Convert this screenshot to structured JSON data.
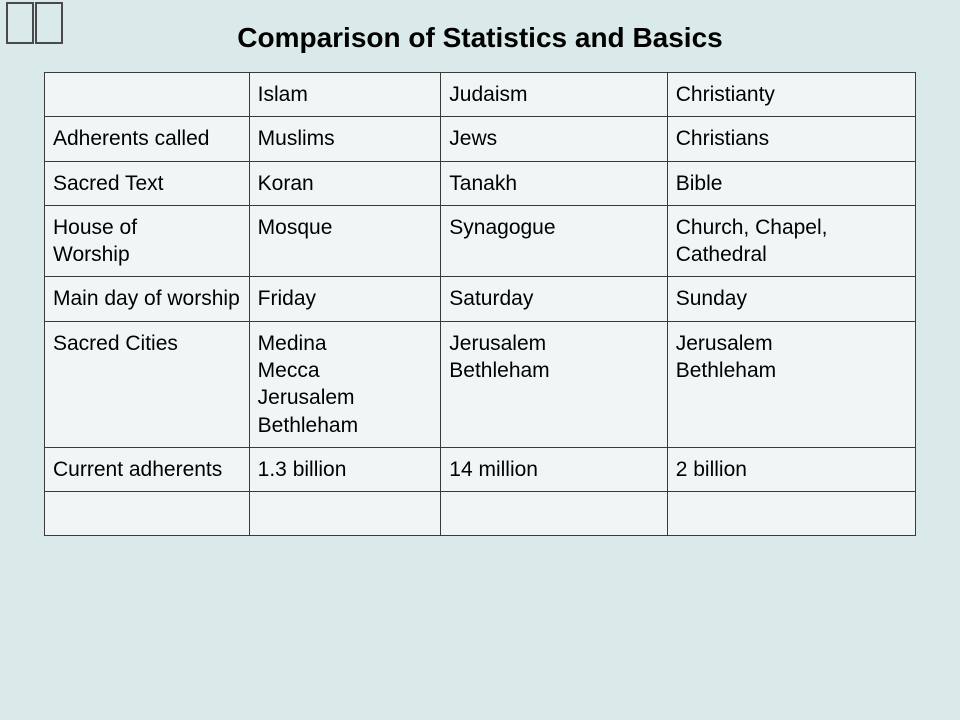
{
  "title": "Comparison of Statistics and Basics",
  "table": {
    "columns": [
      "",
      "Islam",
      "Judaism",
      "Christianty"
    ],
    "rows": [
      {
        "label": "Adherents called",
        "c1": "Muslims",
        "c2": "Jews",
        "c3": "Christians"
      },
      {
        "label": "Sacred Text",
        "c1": "Koran",
        "c2": "Tanakh",
        "c3": "Bible"
      },
      {
        "label_lines": [
          "House of",
          "Worship"
        ],
        "c1": "Mosque",
        "c2": "Synagogue",
        "c3": "Church, Chapel, Cathedral"
      },
      {
        "label": "Main day of worship",
        "c1": "Friday",
        "c2": "Saturday",
        "c3": "Sunday"
      },
      {
        "label": "Sacred Cities",
        "c1_lines": [
          "Medina",
          "Mecca",
          "Jerusalem",
          "Bethleham"
        ],
        "c2_lines": [
          "Jerusalem",
          "Bethleham"
        ],
        "c3_lines": [
          "Jerusalem",
          "Bethleham"
        ]
      },
      {
        "label": "Current adherents",
        "c1": "1.3 billion",
        "c2": "14 million",
        "c3": "2 billion"
      },
      {
        "label": "",
        "c1": "",
        "c2": "",
        "c3": ""
      }
    ],
    "colors": {
      "page_bg": "#dae9ea",
      "cell_bg": "#f0f6f6",
      "border": "#3a3a3a",
      "text": "#000000"
    },
    "font_size_title": 28,
    "font_size_cell": 21
  }
}
